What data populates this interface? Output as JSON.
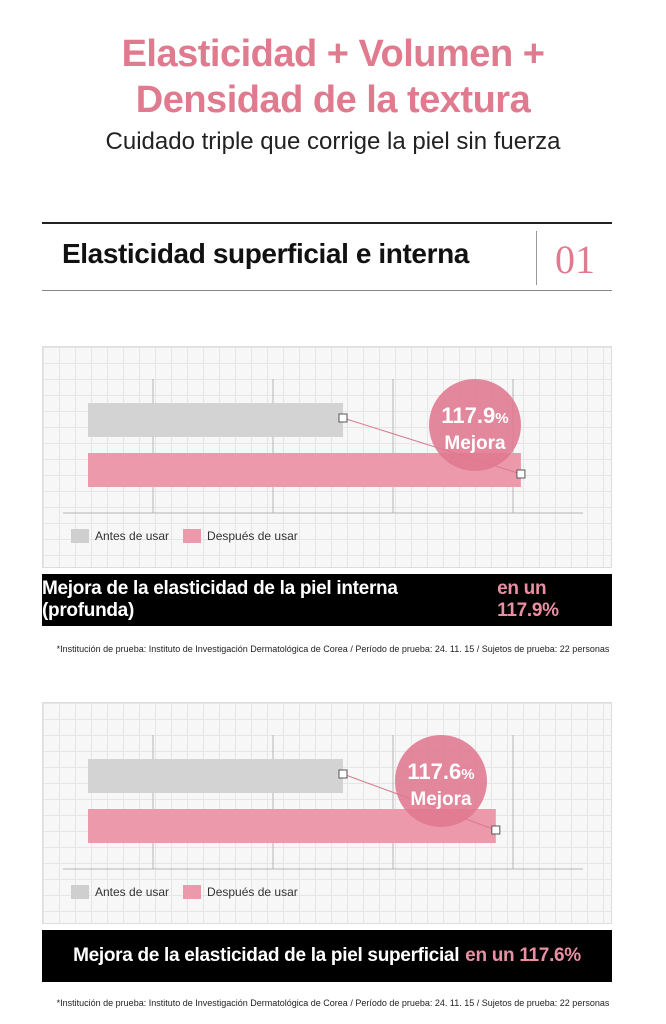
{
  "header": {
    "title_line1": "Elasticidad + Volumen +",
    "title_line2": "Densidad de la textura",
    "subtitle": "Cuidado triple que corrige la piel sin fuerza"
  },
  "section": {
    "title": "Elasticidad superficial e interna",
    "number": "01"
  },
  "colors": {
    "accent": "#e07a8e",
    "before_bar": "#d3d3d3",
    "after_bar": "#ec9aab",
    "bubble": "#e0788f"
  },
  "chart_data": [
    {
      "type": "bar",
      "orientation": "horizontal",
      "series": [
        {
          "name": "Antes de usar",
          "value": 100
        },
        {
          "name": "Después de usar",
          "value": 117.9
        }
      ],
      "annotation": {
        "value": "117.9",
        "unit": "%",
        "label": "Mejora"
      },
      "legend": [
        "Antes de usar",
        "Después de usar"
      ],
      "banner_main": "Mejora de la elasticidad de la piel interna (profunda)",
      "banner_highlight": "en un 117.9%",
      "note": "*Institución de prueba: Instituto de Investigación Dermatológica de Corea / Período de prueba: 24. 11. 15 / Sujetos de prueba: 22 personas"
    },
    {
      "type": "bar",
      "orientation": "horizontal",
      "series": [
        {
          "name": "Antes de usar",
          "value": 100
        },
        {
          "name": "Después de usar",
          "value": 117.6
        }
      ],
      "annotation": {
        "value": "117.6",
        "unit": "%",
        "label": "Mejora"
      },
      "legend": [
        "Antes de usar",
        "Después de usar"
      ],
      "banner_main": "Mejora de la elasticidad de la piel superficial",
      "banner_highlight": "en un 117.6%",
      "note": "*Institución de prueba: Instituto de Investigación Dermatológica de Corea / Período de prueba: 24. 11. 15 / Sujetos de prueba: 22 personas"
    }
  ]
}
